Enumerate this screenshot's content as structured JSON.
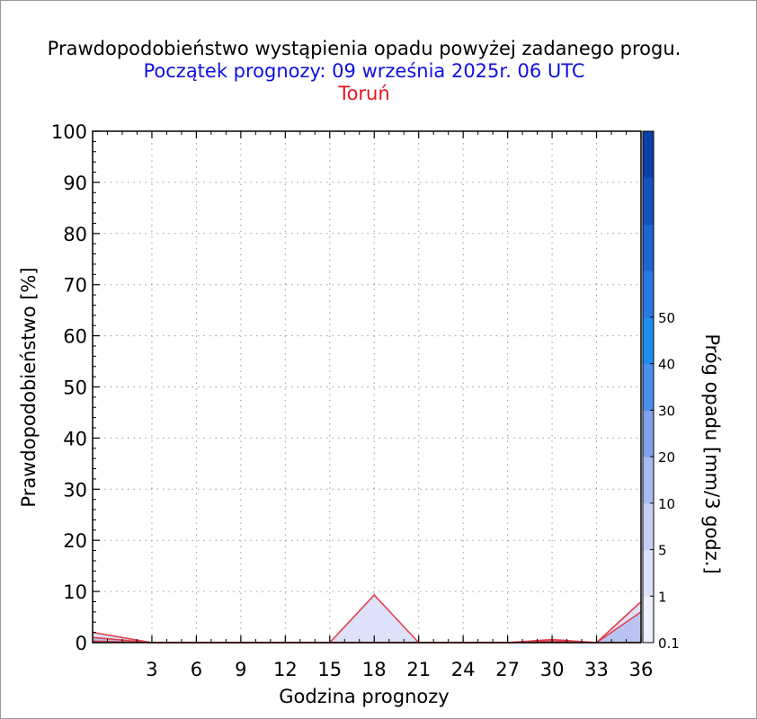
{
  "title": "Prawdopodobieństwo wystąpienia opadu powyżej zadanego progu.",
  "subtitle": "Początek prognozy: 09 września 2025r. 06 UTC",
  "location": "Toruń",
  "colors": {
    "title": "#000000",
    "subtitle": "#1010e0",
    "location": "#e8141e",
    "series_line": "#e0404a",
    "grid": "#9a9a9a"
  },
  "chart_data": {
    "type": "area",
    "title": "Prawdopodobieństwo wystąpienia opadu powyżej zadanego progu.",
    "xlabel": "Godzina prognozy",
    "ylabel": "Prawdopodobieństwo [%]",
    "xlim": [
      -1,
      36
    ],
    "ylim": [
      0,
      100
    ],
    "x_ticks": [
      3,
      6,
      9,
      12,
      15,
      18,
      21,
      24,
      27,
      30,
      33,
      36
    ],
    "y_ticks": [
      0,
      10,
      20,
      30,
      40,
      50,
      60,
      70,
      80,
      90,
      100
    ],
    "grid": true,
    "x": [
      -1,
      3,
      6,
      9,
      12,
      15,
      18,
      21,
      24,
      27,
      30,
      33,
      36
    ],
    "series": [
      {
        "threshold_index": 0,
        "fill": "#dde2fa",
        "values": [
          2,
          0,
          0,
          0,
          0,
          0,
          9.3,
          0,
          0,
          0,
          0.6,
          0,
          8
        ]
      },
      {
        "threshold_index": 1,
        "fill": "#b9c4f4",
        "values": [
          1,
          0,
          0,
          0,
          0,
          0,
          0,
          0,
          0,
          0,
          0.3,
          0,
          6
        ]
      },
      {
        "threshold_index": 2,
        "fill": "#9fb2f0",
        "values": [
          0.3,
          0,
          0,
          0,
          0,
          0,
          0,
          0,
          0,
          0,
          0,
          0,
          0
        ]
      }
    ],
    "colorbar": {
      "label": "Próg opadu [mm/3 godz.]",
      "ticks": [
        "0.1",
        "1",
        "5",
        "10",
        "20",
        "30",
        "40",
        "50"
      ],
      "colors": [
        "#eef0fc",
        "#dde2fa",
        "#c6cff6",
        "#a9b9f2",
        "#7fa0ea",
        "#4a8fee",
        "#1e8cf0",
        "#2a78e6",
        "#1e64d2",
        "#1452be",
        "#0a40a8"
      ]
    }
  }
}
